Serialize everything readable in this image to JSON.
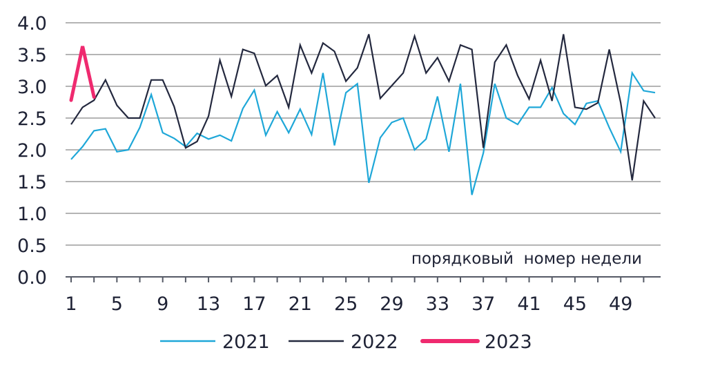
{
  "chart_data": {
    "type": "line",
    "title": "",
    "xlabel": "",
    "ylabel": "",
    "annotation": "порядковый  номер недели",
    "ylim": [
      0,
      4
    ],
    "y_ticks": [
      "0.0",
      "0.5",
      "1.0",
      "1.5",
      "2.0",
      "2.5",
      "3.0",
      "3.5",
      "4.0"
    ],
    "x_ticks": [
      "1",
      "5",
      "9",
      "13",
      "17",
      "21",
      "25",
      "29",
      "33",
      "37",
      "41",
      "45",
      "49"
    ],
    "xlim": [
      1,
      52
    ],
    "grid": true,
    "legend_position": "bottom",
    "series": [
      {
        "name": "2021",
        "color": "#1ea7d8",
        "x": [
          1,
          2,
          3,
          4,
          5,
          6,
          7,
          8,
          9,
          10,
          11,
          12,
          13,
          14,
          15,
          16,
          17,
          18,
          19,
          20,
          21,
          22,
          23,
          24,
          25,
          26,
          27,
          28,
          29,
          30,
          31,
          32,
          33,
          34,
          35,
          36,
          37,
          38,
          39,
          40,
          41,
          42,
          43,
          44,
          45,
          46,
          47,
          48,
          49,
          50,
          51,
          52
        ],
        "values": [
          1.85,
          2.05,
          2.3,
          2.33,
          1.97,
          2.0,
          2.35,
          2.87,
          2.27,
          2.18,
          2.05,
          2.26,
          2.17,
          2.23,
          2.14,
          2.65,
          2.94,
          2.23,
          2.6,
          2.27,
          2.64,
          2.24,
          3.21,
          2.07,
          2.9,
          3.04,
          1.48,
          2.19,
          2.43,
          2.5,
          2.0,
          2.17,
          2.84,
          1.97,
          3.04,
          1.29,
          1.95,
          3.04,
          2.5,
          2.4,
          2.67,
          2.67,
          2.98,
          2.57,
          2.4,
          2.73,
          2.77,
          2.35,
          1.97,
          3.21,
          2.93,
          2.9
        ]
      },
      {
        "name": "2022",
        "color": "#23283e",
        "x": [
          1,
          2,
          3,
          4,
          5,
          6,
          7,
          8,
          9,
          10,
          11,
          12,
          13,
          14,
          15,
          16,
          17,
          18,
          19,
          20,
          21,
          22,
          23,
          24,
          25,
          26,
          27,
          28,
          29,
          30,
          31,
          32,
          33,
          34,
          35,
          36,
          37,
          38,
          39,
          40,
          41,
          42,
          43,
          44,
          45,
          46,
          47,
          48,
          49,
          50,
          51,
          52
        ],
        "values": [
          2.4,
          2.67,
          2.78,
          3.1,
          2.7,
          2.5,
          2.5,
          3.1,
          3.1,
          2.68,
          2.03,
          2.13,
          2.53,
          3.41,
          2.84,
          3.58,
          3.52,
          3.01,
          3.17,
          2.67,
          3.65,
          3.21,
          3.68,
          3.55,
          3.08,
          3.29,
          3.82,
          2.81,
          3.01,
          3.21,
          3.79,
          3.21,
          3.45,
          3.08,
          3.65,
          3.58,
          2.03,
          3.38,
          3.65,
          3.17,
          2.8,
          3.41,
          2.77,
          3.82,
          2.67,
          2.64,
          2.74,
          3.58,
          2.74,
          1.52,
          2.77,
          2.5
        ]
      },
      {
        "name": "2023",
        "color": "#ef2a6f",
        "x": [
          1,
          2,
          3
        ],
        "values": [
          2.78,
          3.63,
          2.83
        ]
      }
    ]
  }
}
